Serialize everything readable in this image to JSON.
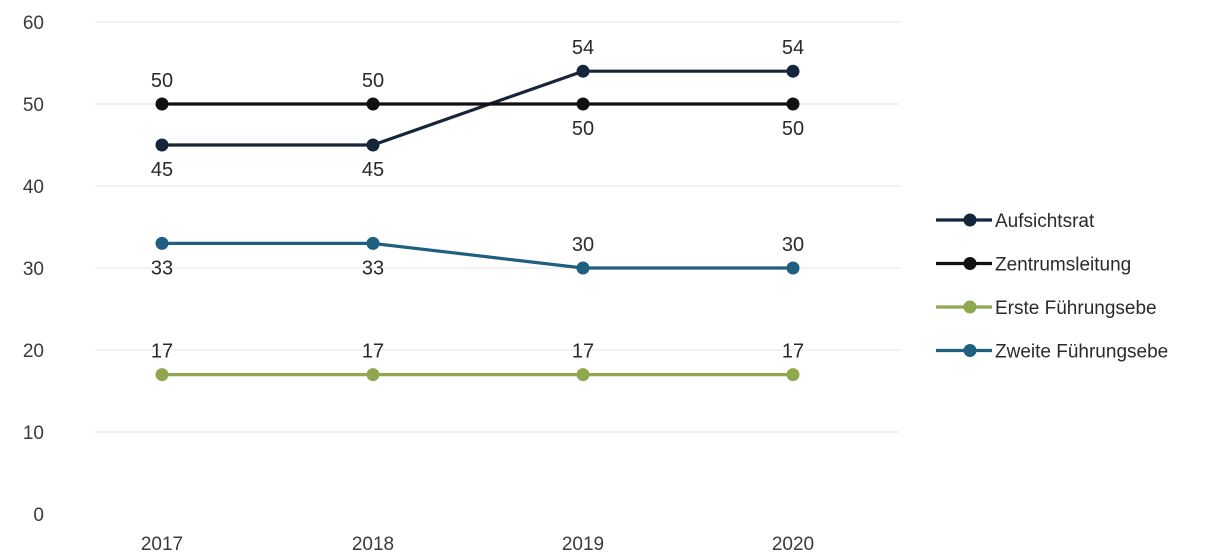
{
  "chart_data": {
    "type": "line",
    "title": "",
    "xlabel": "",
    "ylabel": "",
    "categories": [
      "2017",
      "2018",
      "2019",
      "2020"
    ],
    "ylim": [
      0,
      60
    ],
    "yticks": [
      0,
      10,
      20,
      30,
      40,
      50,
      60
    ],
    "grid": true,
    "legend_position": "right",
    "series": [
      {
        "name": "Aufsichtsrat",
        "values": [
          45,
          45,
          54,
          54
        ],
        "color": "#16263a",
        "label_side": [
          "below",
          "below",
          "above",
          "above"
        ]
      },
      {
        "name": "Zentrumsleitung",
        "values": [
          50,
          50,
          50,
          50
        ],
        "color": "#111111",
        "label_side": [
          "above",
          "above",
          "below",
          "below"
        ]
      },
      {
        "name": "Erste Führungsebe",
        "values": [
          17,
          17,
          17,
          17
        ],
        "color": "#8fa84e",
        "label_side": [
          "above",
          "above",
          "above",
          "above"
        ]
      },
      {
        "name": "Zweite Führungsebe",
        "values": [
          33,
          33,
          30,
          30
        ],
        "color": "#1f5f80",
        "label_side": [
          "below",
          "below",
          "above",
          "above"
        ]
      }
    ]
  }
}
